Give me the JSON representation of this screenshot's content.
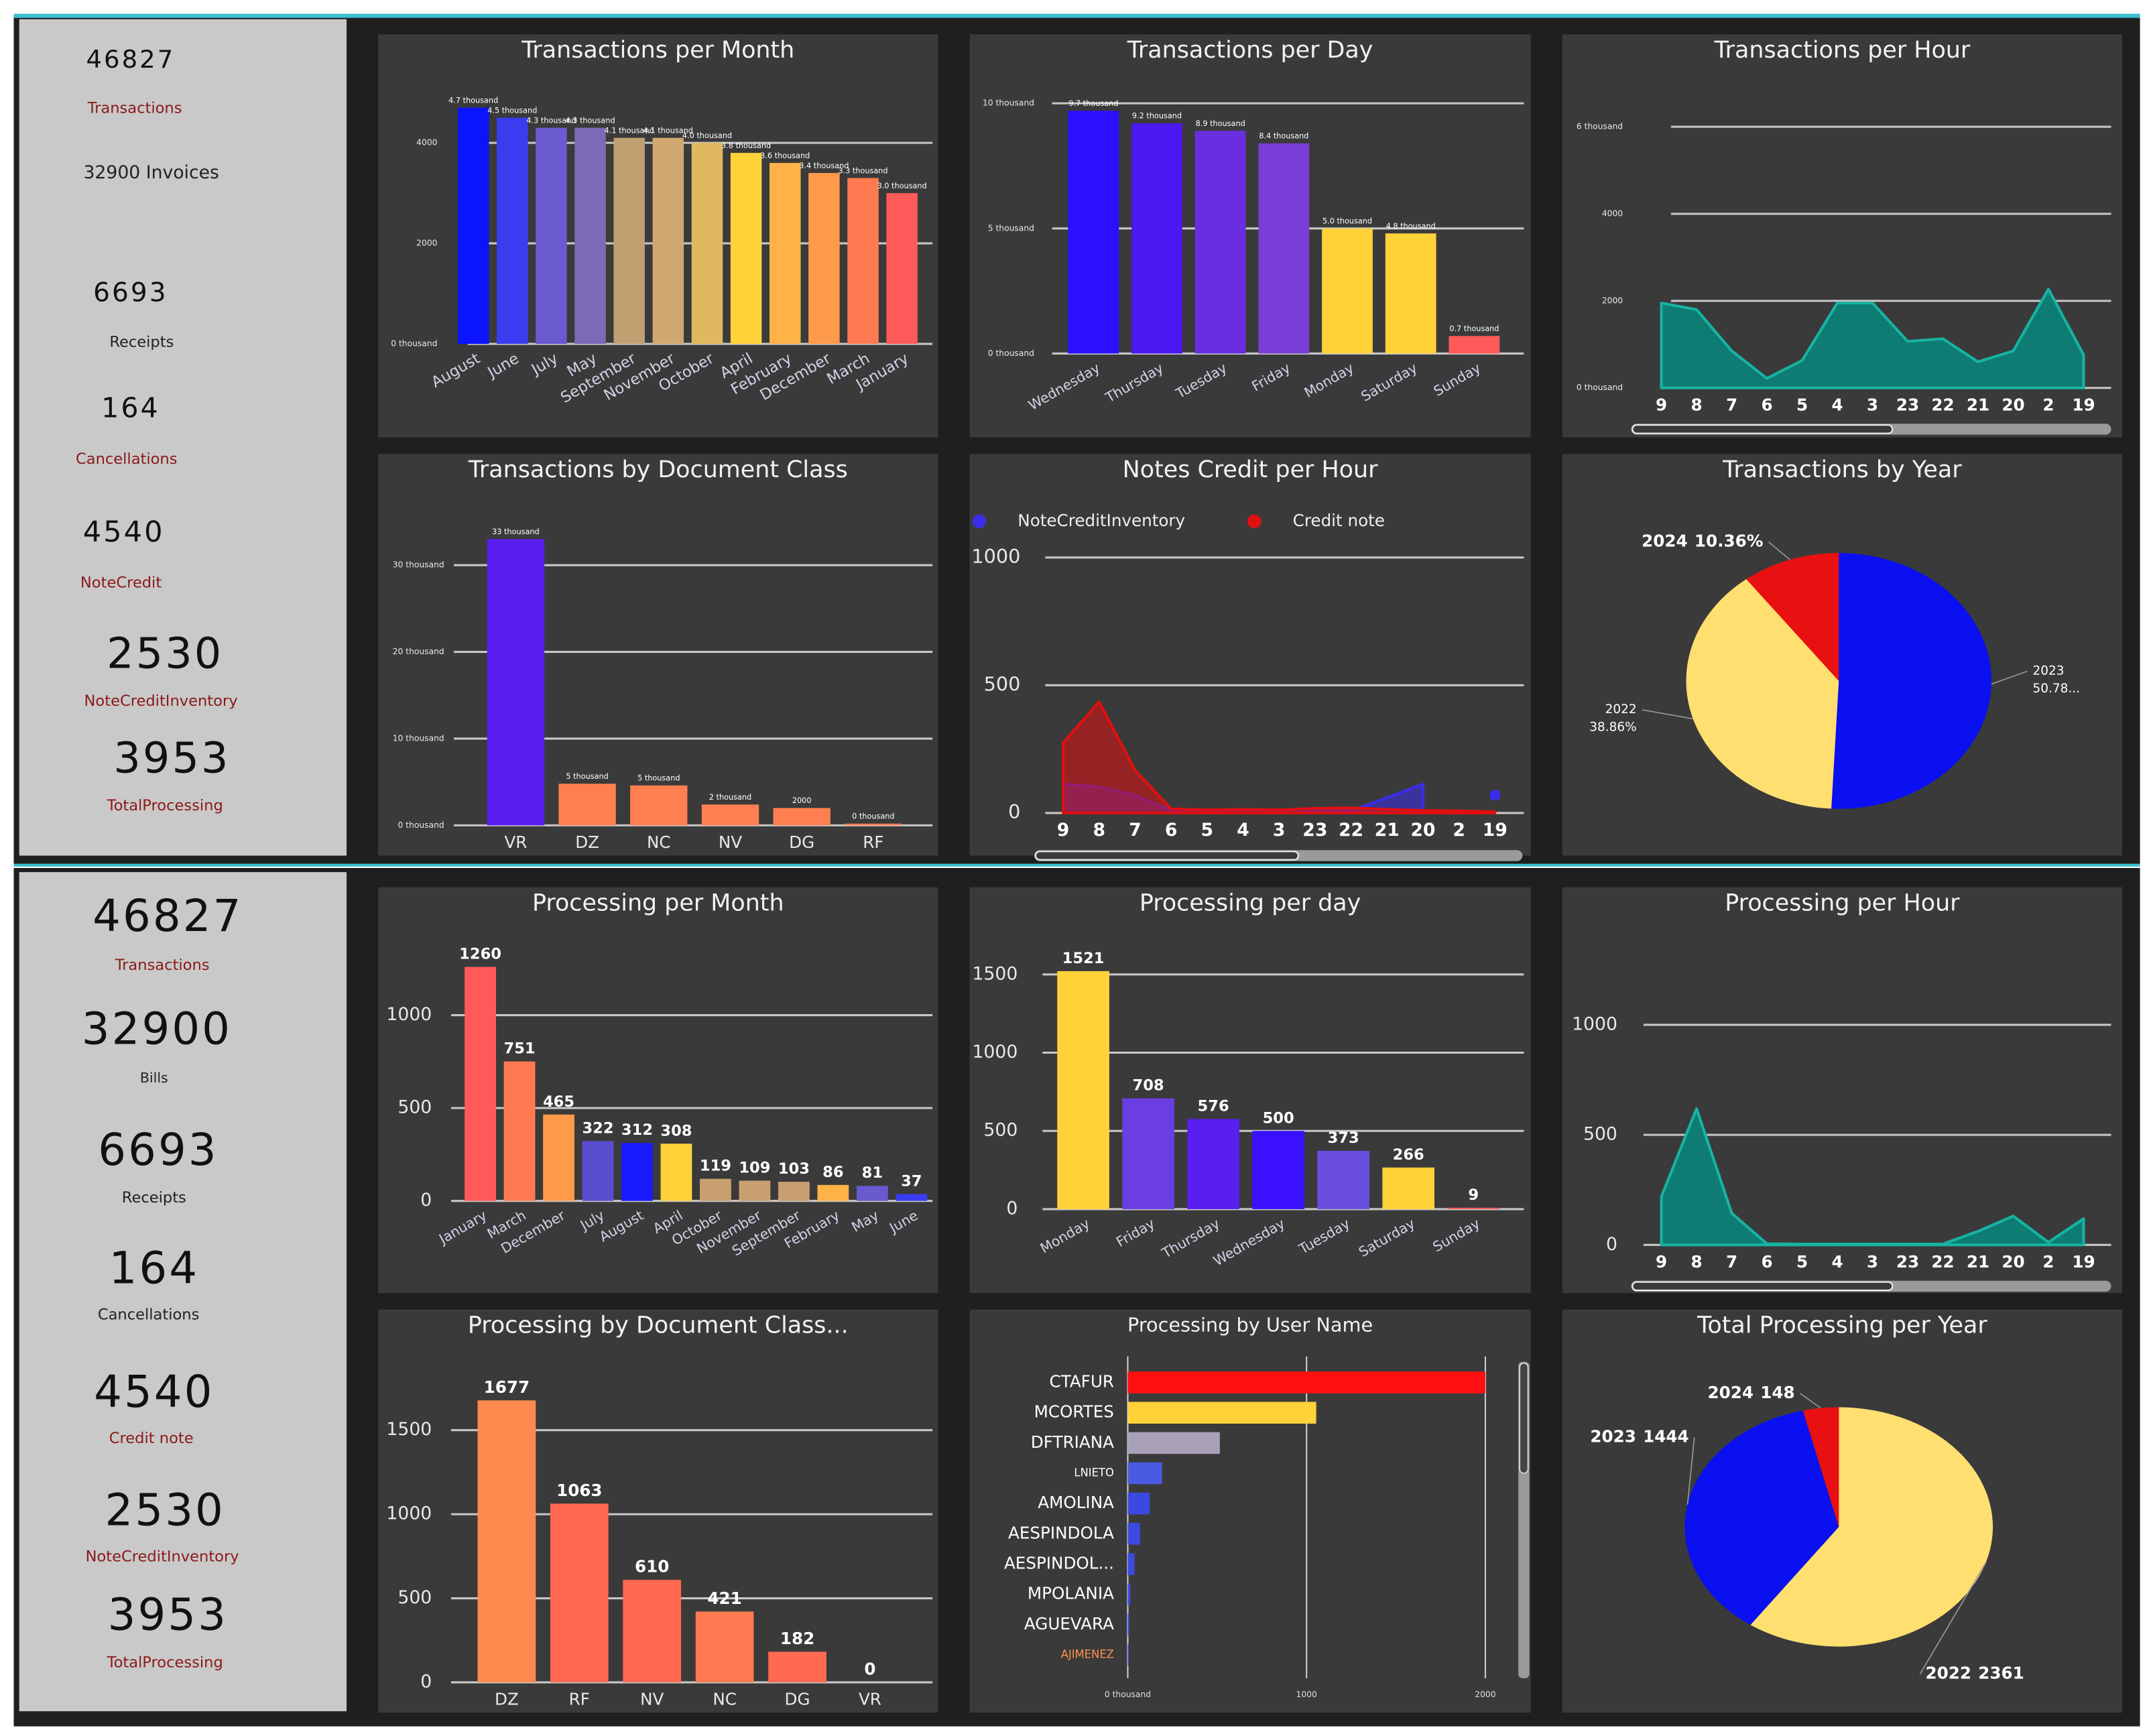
{
  "kpi_panels": [
    {
      "items": [
        {
          "value": 46827,
          "label": "Transactions"
        },
        {
          "label": "32900 Invoices"
        },
        {
          "value": 6693,
          "label": "Receipts"
        },
        {
          "value": 164,
          "label": "Cancellations"
        },
        {
          "value": 4540,
          "label": "NoteCredit"
        },
        {
          "value": 2530,
          "label": "NoteCreditInventory"
        },
        {
          "value": 3953,
          "label": "TotalProcessing"
        }
      ]
    },
    {
      "items": [
        {
          "value": 46827,
          "label": "Transactions"
        },
        {
          "value": 32900,
          "label": "Bills"
        },
        {
          "value": 6693,
          "label": "Receipts"
        },
        {
          "value": 164,
          "label": "Cancellations"
        },
        {
          "value": 4540,
          "label": "Credit note"
        },
        {
          "value": 2530,
          "label": "NoteCreditInventory"
        },
        {
          "value": 3953,
          "label": "TotalProcessing"
        }
      ]
    }
  ],
  "chart_data": [
    {
      "type": "bar",
      "title": "Transactions per Month",
      "categories": [
        "August",
        "June",
        "July",
        "May",
        "September",
        "November",
        "October",
        "April",
        "February",
        "December",
        "March",
        "January"
      ],
      "values": [
        4700,
        4500,
        4300,
        4300,
        4100,
        4100,
        4000,
        3800,
        3600,
        3400,
        3300,
        3000
      ],
      "value_labels": [
        "4.7 thousand",
        "4.5 thousand",
        "4.3 thousand",
        "4.3 thousand",
        "4.1 thousand",
        "4.1 thousand",
        "4.0 thousand",
        "3.8 thousand",
        "3.6 thousand",
        "3.4 thousand",
        "3.3 thousand",
        "3.0 thousand"
      ],
      "colors": [
        "#0a14ff",
        "#3b3cf0",
        "#6a5ad0",
        "#7a6ab8",
        "#c0a070",
        "#d0a870",
        "#e0b860",
        "#ffd23a",
        "#ffb347",
        "#ff9a4a",
        "#ff7a50",
        "#ff5a5a"
      ],
      "ylim": [
        0,
        5200
      ],
      "yticks": [
        {
          "value": 0,
          "label": "0 thousand"
        },
        2000,
        4000
      ],
      "grid": true
    },
    {
      "type": "bar",
      "title": "Transactions per Day",
      "categories": [
        "Wednesday",
        "Thursday",
        "Tuesday",
        "Friday",
        "Monday",
        "Saturday",
        "Sunday"
      ],
      "values": [
        9700,
        9200,
        8900,
        8400,
        5000,
        4800,
        700
      ],
      "value_labels": [
        "9.7 thousand",
        "9.2 thousand",
        "8.9 thousand",
        "8.4 thousand",
        "5.0 thousand",
        "4.8 thousand",
        "0.7 thousand"
      ],
      "colors": [
        "#2a10ff",
        "#4a18f0",
        "#6a2ee0",
        "#7a3ed8",
        "#ffd23a",
        "#ffd23a",
        "#ff5a5a"
      ],
      "ylim": [
        0,
        10500
      ],
      "yticks": [
        {
          "value": 0,
          "label": "0 thousand"
        },
        {
          "value": 5000,
          "label": "5 thousand"
        },
        {
          "value": 10000,
          "label": "10 thousand"
        }
      ],
      "grid": true
    },
    {
      "type": "area",
      "title": "Transactions per Hour",
      "categories": [
        9,
        8,
        7,
        6,
        5,
        4,
        3,
        23,
        22,
        21,
        20,
        2,
        19
      ],
      "values": [
        1950,
        1800,
        850,
        220,
        630,
        1950,
        1950,
        1070,
        1130,
        600,
        850,
        2270,
        760
      ],
      "color": "#0e7c72",
      "ylim": [
        0,
        6700
      ],
      "yticks": [
        {
          "value": 0,
          "label": "0 thousand"
        },
        2000,
        4000,
        {
          "value": 6000,
          "label": "6 thousand"
        }
      ],
      "grid": true
    },
    {
      "type": "bar",
      "title": "Transactions by Document Class",
      "categories": [
        "VR",
        "DZ",
        "NC",
        "NV",
        "DG",
        "RF"
      ],
      "values": [
        33000,
        4800,
        4600,
        2400,
        2000,
        200
      ],
      "value_labels": [
        "33 thousand",
        "5 thousand",
        "5 thousand",
        "2 thousand",
        "2000",
        "0 thousand"
      ],
      "colors": [
        "#5a1ef0",
        "#ff7f50",
        "#ff7f50",
        "#ff7f50",
        "#ff7f50",
        "#ff7f50"
      ],
      "ylim": [
        0,
        36000
      ],
      "yticks": [
        {
          "value": 0,
          "label": "0 thousand"
        },
        {
          "value": 10000,
          "label": "10 thousand"
        },
        {
          "value": 20000,
          "label": "20 thousand"
        },
        {
          "value": 30000,
          "label": "30 thousand"
        }
      ],
      "grid": true
    },
    {
      "type": "area",
      "title": "Notes Credit per Hour",
      "categories": [
        9,
        8,
        7,
        6,
        5,
        4,
        3,
        23,
        22,
        21,
        20,
        2,
        19
      ],
      "series": [
        {
          "name": "NoteCreditInventory",
          "color": "#3a2ee8",
          "values": [
            113,
            102,
            70,
            10,
            8,
            8,
            8,
            8,
            8,
            60,
            113,
            null,
            70
          ]
        },
        {
          "name": "Credit note",
          "color": "#e01010",
          "values": [
            274,
            435,
            167,
            16,
            12,
            14,
            12,
            18,
            20,
            14,
            10,
            8,
            5
          ]
        }
      ],
      "ylim": [
        0,
        1050
      ],
      "yticks": [
        0,
        500,
        1000
      ],
      "grid": true,
      "legend": "top"
    },
    {
      "type": "pie",
      "title": "Transactions by Year",
      "categories": [
        "2023",
        "2022",
        "2024"
      ],
      "values": [
        50.78,
        38.86,
        10.36
      ],
      "value_labels": [
        "50.78...",
        "38.86%",
        "10.36%"
      ],
      "colors": [
        "#0a10f0",
        "#ffdf70",
        "#e81010"
      ]
    },
    {
      "type": "bar",
      "title": "Processing per Month",
      "categories": [
        "January",
        "March",
        "December",
        "July",
        "August",
        "April",
        "October",
        "November",
        "September",
        "February",
        "May",
        "June"
      ],
      "values": [
        1260,
        751,
        465,
        322,
        312,
        308,
        119,
        109,
        103,
        86,
        81,
        37
      ],
      "colors": [
        "#ff5a5a",
        "#ff7a50",
        "#ff9a4a",
        "#5a4ecf",
        "#1a1aff",
        "#ffd23a",
        "#c8a070",
        "#c8a070",
        "#c8a070",
        "#ffb347",
        "#6a5ad0",
        "#3b3cf0"
      ],
      "ylim": [
        0,
        1400
      ],
      "yticks": [
        0,
        500,
        1000
      ],
      "grid": true
    },
    {
      "type": "bar",
      "title": "Processing per day",
      "categories": [
        "Monday",
        "Friday",
        "Thursday",
        "Wednesday",
        "Tuesday",
        "Saturday",
        "Sunday"
      ],
      "values": [
        1521,
        708,
        576,
        500,
        373,
        266,
        9
      ],
      "colors": [
        "#ffd23a",
        "#6a3ee0",
        "#5a1ef0",
        "#3a10ff",
        "#6a4ee0",
        "#ffd23a",
        "#ff5a5a"
      ],
      "ylim": [
        0,
        1600
      ],
      "yticks": [
        0,
        500,
        1000,
        1500
      ],
      "grid": true
    },
    {
      "type": "area",
      "title": "Processing per Hour",
      "categories": [
        9,
        8,
        7,
        6,
        5,
        4,
        3,
        23,
        22,
        21,
        20,
        2,
        19
      ],
      "values": [
        219,
        619,
        144,
        5,
        4,
        4,
        4,
        4,
        4,
        62,
        131,
        12,
        119
      ],
      "color": "#0e7c72",
      "ylim": [
        0,
        1150
      ],
      "yticks": [
        0,
        500,
        1000
      ],
      "grid": true
    },
    {
      "type": "bar",
      "title": "Processing by Document Class...",
      "categories": [
        "DZ",
        "RF",
        "NV",
        "NC",
        "DG",
        "VR"
      ],
      "values": [
        1677,
        1063,
        610,
        421,
        182,
        0
      ],
      "colors": [
        "#ff8a50",
        "#ff6a50",
        "#ff6a50",
        "#ff7a50",
        "#ff6a50",
        "#ff6a50"
      ],
      "ylim": [
        0,
        1800
      ],
      "yticks": [
        0,
        500,
        1000,
        1500
      ],
      "grid": true
    },
    {
      "type": "barh",
      "title": "Processing by User Name",
      "categories": [
        "CTAFUR",
        "MCORTES",
        "DFTRIANA",
        "LNIETO",
        "AMOLINA",
        "AESPINDOLA",
        "AESPINDOL...",
        "MPOLANIA",
        "AGUEVARA",
        "AJIMENEZ"
      ],
      "values": [
        2000,
        1054,
        515,
        192,
        123,
        69,
        38,
        15,
        8,
        5
      ],
      "colors": [
        "#ff1010",
        "#ffd23a",
        "#a8a0b8",
        "#4a5ae0",
        "#3a4ae0",
        "#3a4ae0",
        "#3a4ae0",
        "#3a4ae0",
        "#3a4ae0",
        "#3a4ae0"
      ],
      "xlim": [
        0,
        2100
      ],
      "xticks": [
        {
          "value": 0,
          "label": "0 thousand"
        },
        1000,
        2000
      ],
      "grid": true
    },
    {
      "type": "pie",
      "title": "Total Processing per Year",
      "categories": [
        "2022",
        "2023",
        "2024"
      ],
      "values": [
        2361,
        1444,
        148
      ],
      "colors": [
        "#ffdf70",
        "#0a10f0",
        "#e81010"
      ]
    }
  ]
}
